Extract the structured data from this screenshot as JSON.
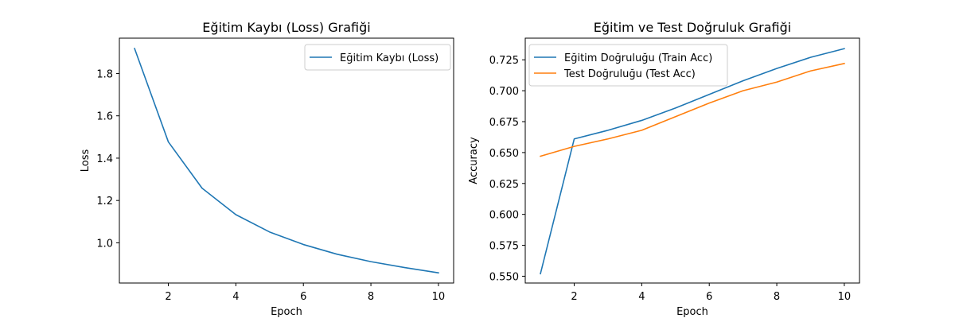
{
  "chart_data": [
    {
      "type": "line",
      "title": "Eğitim Kaybı (Loss) Grafiği",
      "xlabel": "Epoch",
      "ylabel": "Loss",
      "x": [
        1,
        2,
        3,
        4,
        5,
        6,
        7,
        8,
        9,
        10
      ],
      "xlim": [
        0.55,
        10.45
      ],
      "ylim": [
        0.81,
        1.967
      ],
      "xticks": [
        2,
        4,
        6,
        8,
        10
      ],
      "yticks": [
        1.0,
        1.2,
        1.4,
        1.6,
        1.8
      ],
      "ytick_labels": [
        "1.0",
        "1.2",
        "1.4",
        "1.6",
        "1.8"
      ],
      "grid": false,
      "legend_position": "top-right",
      "series": [
        {
          "name": "Eğitim Kaybı (Loss)",
          "color": "#1f77b4",
          "values": [
            1.918,
            1.477,
            1.258,
            1.133,
            1.051,
            0.992,
            0.946,
            0.911,
            0.883,
            0.858
          ]
        }
      ]
    },
    {
      "type": "line",
      "title": "Eğitim ve Test Doğruluk Grafiği",
      "xlabel": "Epoch",
      "ylabel": "Accuracy",
      "x": [
        1,
        2,
        3,
        4,
        5,
        6,
        7,
        8,
        9,
        10
      ],
      "xlim": [
        0.55,
        10.45
      ],
      "ylim": [
        0.5445,
        0.7425
      ],
      "xticks": [
        2,
        4,
        6,
        8,
        10
      ],
      "yticks": [
        0.55,
        0.575,
        0.6,
        0.625,
        0.65,
        0.675,
        0.7,
        0.725
      ],
      "ytick_labels": [
        "0.550",
        "0.575",
        "0.600",
        "0.625",
        "0.650",
        "0.675",
        "0.700",
        "0.725"
      ],
      "grid": false,
      "legend_position": "top-left",
      "series": [
        {
          "name": "Eğitim Doğruluğu (Train Acc)",
          "color": "#1f77b4",
          "values": [
            0.552,
            0.661,
            0.668,
            0.676,
            0.686,
            0.697,
            0.708,
            0.718,
            0.727,
            0.734
          ]
        },
        {
          "name": "Test Doğruluğu (Test Acc)",
          "color": "#ff7f0e",
          "values": [
            0.647,
            0.655,
            0.661,
            0.668,
            0.679,
            0.69,
            0.7,
            0.707,
            0.716,
            0.722
          ]
        }
      ]
    }
  ]
}
